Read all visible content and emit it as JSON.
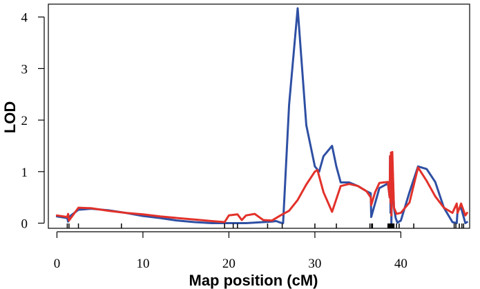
{
  "chart_data": {
    "type": "line",
    "title": "",
    "xlabel": "Map position (cM)",
    "ylabel": "LOD",
    "xlim": [
      -1,
      48
    ],
    "ylim": [
      -0.1,
      4.25
    ],
    "xticks": [
      0,
      10,
      20,
      30,
      40
    ],
    "yticks": [
      0,
      1,
      2,
      3,
      4
    ],
    "grid": false,
    "legend": "none",
    "series": [
      {
        "color": "#2e4fa3",
        "x": [
          0,
          1.2,
          1.3,
          1.4,
          2.5,
          4,
          6,
          8,
          10,
          12,
          14,
          16,
          18,
          20,
          22,
          24,
          25,
          25.5,
          26,
          26.3,
          27,
          28,
          29,
          30,
          30.5,
          31,
          32,
          32.5,
          33,
          34,
          35,
          36,
          36.5,
          36.55,
          37.5,
          38.5,
          38.7,
          38.75,
          38.8,
          38.85,
          38.9,
          39,
          39.2,
          39.4,
          39.6,
          40,
          41,
          42,
          43,
          44,
          45,
          46,
          46.5,
          46.6,
          47,
          47.5,
          47.7
        ],
        "y": [
          0.13,
          0.1,
          0.03,
          0.12,
          0.26,
          0.28,
          0.25,
          0.2,
          0.14,
          0.1,
          0.05,
          0.02,
          0.0,
          0.0,
          0.0,
          0.02,
          0.03,
          0.04,
          0.01,
          0.0,
          2.3,
          4.17,
          1.9,
          1.1,
          1.0,
          1.3,
          1.5,
          1.1,
          0.79,
          0.79,
          0.72,
          0.62,
          0.58,
          0.12,
          0.68,
          0.77,
          0.5,
          1.3,
          0.2,
          1.3,
          0.0,
          1.2,
          0.3,
          0.1,
          0.01,
          0.05,
          0.6,
          1.1,
          1.05,
          0.8,
          0.3,
          0.02,
          0.0,
          0.25,
          0.3,
          0.0,
          0.02
        ]
      },
      {
        "color": "#e2312a",
        "x": [
          0,
          1.2,
          1.3,
          1.4,
          2.5,
          4,
          6,
          8,
          10,
          12,
          14,
          16,
          18,
          19.5,
          20,
          21,
          21.5,
          22,
          23,
          24,
          25,
          26,
          27,
          28,
          29,
          30,
          30.3,
          31,
          32,
          33,
          34,
          35,
          36,
          36.5,
          36.55,
          37,
          37.5,
          38.5,
          38.7,
          38.75,
          38.8,
          38.85,
          38.9,
          39,
          39.2,
          39.5,
          40,
          41,
          42,
          43,
          44,
          45,
          46,
          46.5,
          46.6,
          47,
          47.5,
          47.7
        ],
        "y": [
          0.15,
          0.12,
          0.18,
          0.05,
          0.3,
          0.29,
          0.24,
          0.2,
          0.17,
          0.13,
          0.1,
          0.07,
          0.04,
          0.02,
          0.15,
          0.17,
          0.06,
          0.15,
          0.18,
          0.06,
          0.05,
          0.15,
          0.24,
          0.45,
          0.75,
          1.0,
          1.03,
          0.6,
          0.22,
          0.72,
          0.76,
          0.72,
          0.62,
          0.5,
          0.35,
          0.6,
          0.78,
          0.8,
          0.5,
          1.3,
          0.4,
          1.37,
          0.15,
          1.38,
          0.3,
          0.18,
          0.2,
          0.4,
          1.08,
          0.82,
          0.52,
          0.3,
          0.2,
          0.38,
          0.2,
          0.38,
          0.15,
          0.2
        ]
      }
    ],
    "markers": [
      1.2,
      1.4,
      2.5,
      7.5,
      19.5,
      20.5,
      21,
      24.5,
      26.2,
      30,
      32.5,
      36.4,
      36.6,
      36.7,
      38.5,
      38.6,
      38.7,
      38.8,
      38.9,
      39,
      39.1,
      39.2,
      39.5,
      39.8,
      41.5,
      46.2,
      46.4,
      46.8,
      47.1,
      47.3
    ]
  }
}
